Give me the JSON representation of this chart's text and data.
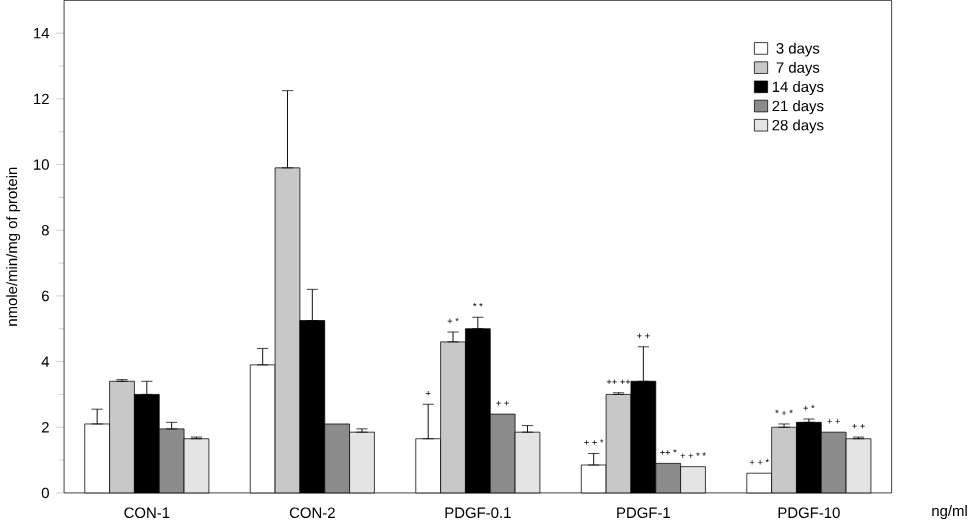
{
  "chart_data": {
    "type": "bar",
    "ylabel": "nmole/min/mg of protein",
    "xlabel": "ng/ml",
    "categories": [
      "CON-1",
      "CON-2",
      "PDGF-0.1",
      "PDGF-1",
      "PDGF-10"
    ],
    "ylim": [
      0,
      15
    ],
    "yticks": [
      0,
      2,
      4,
      6,
      8,
      10,
      12,
      14
    ],
    "legend": "top right",
    "grid": false,
    "series": [
      {
        "name": "3 days",
        "color": "#ffffff",
        "values": [
          2.1,
          3.9,
          1.65,
          0.85,
          0.6
        ],
        "errors": [
          [
            2.1,
            2.55
          ],
          [
            3.9,
            4.4
          ],
          [
            1.65,
            2.7
          ],
          [
            0.85,
            1.2
          ],
          null
        ]
      },
      {
        "name": "7 days",
        "color": "#c8c8c8",
        "values": [
          3.4,
          9.9,
          4.6,
          3.0,
          2.0
        ],
        "errors": [
          [
            3.4,
            3.45
          ],
          [
            9.9,
            12.25
          ],
          [
            4.6,
            4.9
          ],
          [
            3.0,
            3.05
          ],
          [
            2.0,
            2.1
          ]
        ]
      },
      {
        "name": "14 days",
        "color": "#000000",
        "values": [
          3.0,
          5.25,
          5.0,
          3.4,
          2.15
        ],
        "errors": [
          [
            3.0,
            3.4
          ],
          [
            5.25,
            6.2
          ],
          [
            5.0,
            5.35
          ],
          [
            3.4,
            4.45
          ],
          [
            2.15,
            2.25
          ]
        ]
      },
      {
        "name": "21 days",
        "color": "#8c8c8c",
        "values": [
          1.95,
          2.1,
          2.4,
          0.9,
          1.85
        ],
        "errors": [
          [
            1.95,
            2.15
          ],
          null,
          null,
          null,
          null
        ]
      },
      {
        "name": "28 days",
        "color": "#e4e4e4",
        "values": [
          1.65,
          1.85,
          1.85,
          0.8,
          1.65
        ],
        "errors": [
          [
            1.65,
            1.7
          ],
          [
            1.85,
            1.95
          ],
          [
            1.85,
            2.05
          ],
          null,
          [
            1.65,
            1.7
          ]
        ]
      }
    ],
    "annotations": [
      "+",
      "+ *",
      "* *",
      "+ +",
      "+ + *",
      "++ ++",
      "+ +",
      "++ *",
      "+ + * *",
      "+ + *",
      "* + *",
      "+ *",
      "+ +",
      "+ +"
    ]
  }
}
